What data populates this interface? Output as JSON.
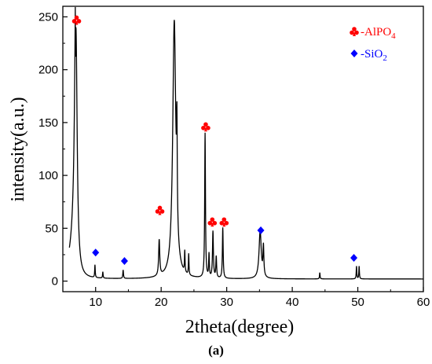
{
  "chart_data": {
    "type": "line",
    "xlabel": "2theta(degree)",
    "ylabel": "intensity(a.u.)",
    "xlim": [
      5,
      60
    ],
    "ylim": [
      -10,
      260
    ],
    "xticks": [
      10,
      20,
      30,
      40,
      50,
      60
    ],
    "yticks": [
      0,
      50,
      100,
      150,
      200,
      250
    ],
    "grid": false,
    "legend_position": "top-right",
    "legend": [
      {
        "label": "-AlPO",
        "subscript": "4",
        "marker": "club",
        "color": "#ff0000"
      },
      {
        "label": "-SiO",
        "subscript": "2",
        "marker": "diamond",
        "color": "#0000ff"
      }
    ],
    "series": [
      {
        "color": "#000000",
        "baseline": 2,
        "peaks": [
          {
            "x": 7.0,
            "y": 238,
            "w": 0.22
          },
          {
            "x": 9.9,
            "y": 12,
            "w": 0.05
          },
          {
            "x": 11.1,
            "y": 6,
            "w": 0.05
          },
          {
            "x": 14.2,
            "y": 8,
            "w": 0.06
          },
          {
            "x": 19.7,
            "y": 34,
            "w": 0.1
          },
          {
            "x": 22.0,
            "y": 243,
            "w": 0.28
          },
          {
            "x": 22.4,
            "y": 88,
            "w": 0.06
          },
          {
            "x": 23.6,
            "y": 20,
            "w": 0.05
          },
          {
            "x": 24.2,
            "y": 20,
            "w": 0.05
          },
          {
            "x": 26.7,
            "y": 137,
            "w": 0.07
          },
          {
            "x": 27.3,
            "y": 22,
            "w": 0.06
          },
          {
            "x": 27.9,
            "y": 44,
            "w": 0.08
          },
          {
            "x": 28.4,
            "y": 20,
            "w": 0.07
          },
          {
            "x": 29.4,
            "y": 48,
            "w": 0.07
          },
          {
            "x": 35.1,
            "y": 45,
            "w": 0.2
          },
          {
            "x": 35.6,
            "y": 28,
            "w": 0.08
          },
          {
            "x": 44.2,
            "y": 6,
            "w": 0.05
          },
          {
            "x": 49.8,
            "y": 12,
            "w": 0.05
          },
          {
            "x": 50.2,
            "y": 12,
            "w": 0.05
          }
        ]
      }
    ],
    "markers": [
      {
        "type": "club",
        "color": "#ff0000",
        "x": 7.1,
        "y": 247
      },
      {
        "type": "club",
        "color": "#ff0000",
        "x": 19.8,
        "y": 67
      },
      {
        "type": "club",
        "color": "#ff0000",
        "x": 26.8,
        "y": 146
      },
      {
        "type": "club",
        "color": "#ff0000",
        "x": 27.8,
        "y": 56
      },
      {
        "type": "club",
        "color": "#ff0000",
        "x": 29.6,
        "y": 56
      },
      {
        "type": "diamond",
        "color": "#0000ff",
        "x": 10.0,
        "y": 27
      },
      {
        "type": "diamond",
        "color": "#0000ff",
        "x": 14.4,
        "y": 19
      },
      {
        "type": "diamond",
        "color": "#0000ff",
        "x": 35.2,
        "y": 48
      },
      {
        "type": "diamond",
        "color": "#0000ff",
        "x": 49.4,
        "y": 22
      }
    ]
  },
  "caption": "(a)"
}
